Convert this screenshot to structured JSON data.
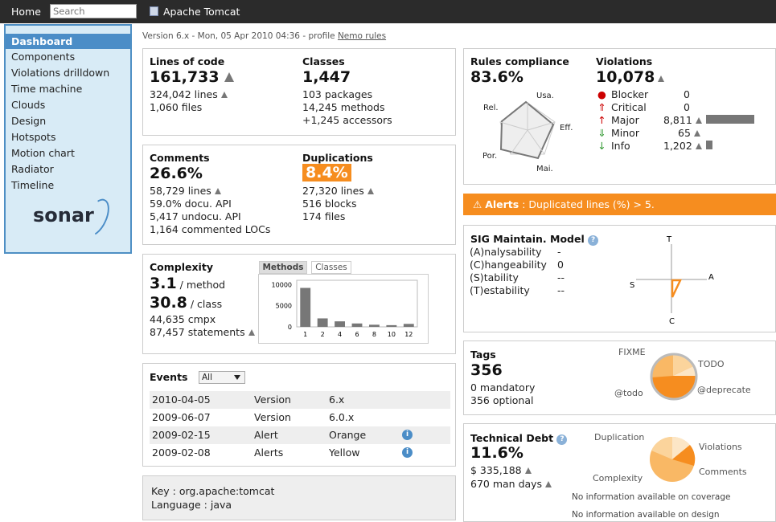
{
  "topbar": {
    "home": "Home",
    "search_placeholder": "Search",
    "project": "Apache Tomcat"
  },
  "sidebar": {
    "items": [
      "Dashboard",
      "Components",
      "Violations drilldown",
      "Time machine",
      "Clouds",
      "Design",
      "Hotspots",
      "Motion chart",
      "Radiator",
      "Timeline"
    ],
    "logo": "sonar"
  },
  "version": {
    "text": "Version 6.x - Mon, 05 Apr 2010 04:36 - profile ",
    "profile_link": "Nemo rules"
  },
  "loc": {
    "title": "Lines of code",
    "value": "161,733",
    "lines": "324,042 lines",
    "files": "1,060 files"
  },
  "classes": {
    "title": "Classes",
    "value": "1,447",
    "packages": "103 packages",
    "methods": "14,245 methods",
    "accessors": "+1,245 accessors"
  },
  "comments": {
    "title": "Comments",
    "value": "26.6%",
    "lines": "58,729 lines",
    "docu": "59.0% docu. API",
    "undocu": "5,417 undocu. API",
    "commented": "1,164 commented LOCs"
  },
  "duplications": {
    "title": "Duplications",
    "value": "8.4%",
    "lines": "27,320 lines",
    "blocks": "516 blocks",
    "files": "174 files"
  },
  "complexity": {
    "title": "Complexity",
    "per_method": "3.1",
    "per_method_label": "/ method",
    "per_class": "30.8",
    "per_class_label": "/ class",
    "cmpx": "44,635 cmpx",
    "statements": "87,457 statements",
    "tab_methods": "Methods",
    "tab_classes": "Classes"
  },
  "chart_data": {
    "type": "bar",
    "categories": [
      "1",
      "2",
      "4",
      "6",
      "8",
      "10",
      "12"
    ],
    "values": [
      9200,
      2000,
      1300,
      800,
      500,
      400,
      700
    ],
    "yticks": [
      "10000",
      "5000",
      "0"
    ],
    "ylim": [
      0,
      11000
    ]
  },
  "events": {
    "title": "Events",
    "filter": "All",
    "rows": [
      {
        "date": "2010-04-05",
        "type": "Version",
        "name": "6.x",
        "info": false
      },
      {
        "date": "2009-06-07",
        "type": "Version",
        "name": "6.0.x",
        "info": false
      },
      {
        "date": "2009-02-15",
        "type": "Alert",
        "name": "Orange",
        "info": true
      },
      {
        "date": "2009-02-08",
        "type": "Alerts",
        "name": "Yellow",
        "info": true
      }
    ]
  },
  "key": {
    "key_line": "Key : org.apache:tomcat",
    "lang_line": "Language : java"
  },
  "rules": {
    "title": "Rules compliance",
    "value": "83.6%",
    "radar_labels": [
      "Usa.",
      "Eff.",
      "Mai.",
      "Por.",
      "Rel."
    ]
  },
  "violations": {
    "title": "Violations",
    "value": "10,078",
    "rows": [
      {
        "name": "Blocker",
        "count": "0",
        "bar": 0
      },
      {
        "name": "Critical",
        "count": "0",
        "bar": 0
      },
      {
        "name": "Major",
        "count": "8,811",
        "bar": 1.0
      },
      {
        "name": "Minor",
        "count": "65",
        "bar": 0
      },
      {
        "name": "Info",
        "count": "1,202",
        "bar": 0.14
      }
    ]
  },
  "alert": {
    "label": "Alerts",
    "text": " : Duplicated lines (%) > 5."
  },
  "sig": {
    "title": "SIG Maintain. Model",
    "rows": [
      {
        "label": "(A)nalysability",
        "value": "-"
      },
      {
        "label": "(C)hangeability",
        "value": "0"
      },
      {
        "label": "(S)tability",
        "value": "--"
      },
      {
        "label": "(T)estability",
        "value": "--"
      }
    ],
    "axes": [
      "T",
      "A",
      "S",
      "C"
    ]
  },
  "tags": {
    "title": "Tags",
    "value": "356",
    "mandatory": "0 mandatory",
    "optional": "356 optional",
    "pie_labels": [
      "FIXME",
      "TODO",
      "@deprecate",
      "@todo"
    ]
  },
  "debt": {
    "title": "Technical Debt",
    "value": "11.6%",
    "cost": "$ 335,188",
    "days": "670 man days",
    "pie_labels": [
      "Duplication",
      "Violations",
      "Comments",
      "Complexity"
    ],
    "no_coverage": "No information available on coverage",
    "no_design": "No information available on design"
  },
  "colors": {
    "accent": "#4b8dc7",
    "alert": "#f68d1f",
    "topbar": "#2b2b2b"
  }
}
